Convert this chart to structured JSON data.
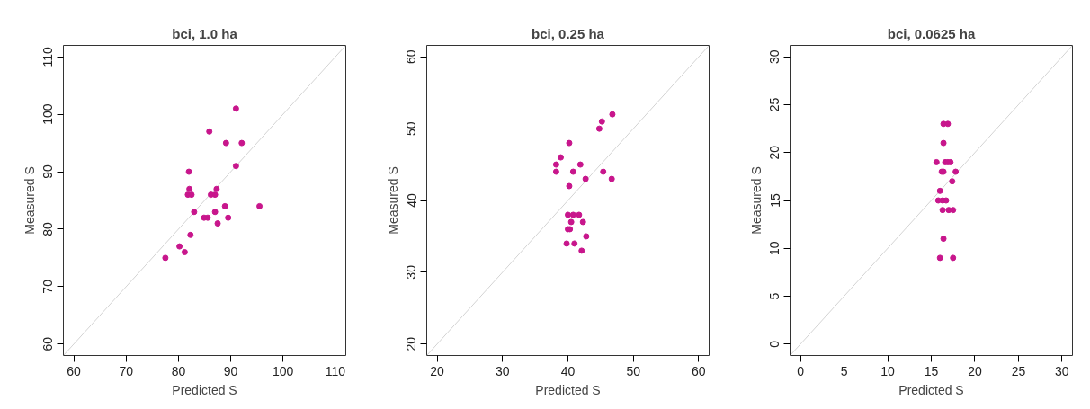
{
  "chart_data": [
    {
      "type": "scatter",
      "title": "bci, 1.0 ha",
      "xlabel": "Predicted S",
      "ylabel": "Measured S",
      "xlim": [
        58,
        112
      ],
      "ylim": [
        58,
        112
      ],
      "xticks": [
        60,
        70,
        80,
        90,
        100,
        110
      ],
      "yticks": [
        60,
        70,
        80,
        90,
        100,
        110
      ],
      "grid": false,
      "series": [
        {
          "type": "line",
          "color": "#d3d3d3",
          "x": [
            58,
            112
          ],
          "values": [
            58,
            112
          ]
        },
        {
          "color": "#c8168c",
          "marker": "circle",
          "x": [
            91,
            85.9,
            89.1,
            92.1,
            91,
            82,
            82.1,
            81.8,
            82.5,
            87.3,
            86.2,
            87,
            88.9,
            95.5,
            83,
            87,
            84.9,
            85.6,
            89.5,
            87.5,
            82.3,
            80.2,
            81.2,
            77.5
          ],
          "values": [
            101,
            97,
            95,
            95,
            91,
            90,
            87,
            86,
            86,
            87,
            86,
            86,
            84,
            84,
            83,
            83,
            82,
            82,
            82,
            81,
            79,
            77,
            76,
            75
          ]
        }
      ]
    },
    {
      "type": "scatter",
      "title": "bci, 0.25 ha",
      "xlabel": "Predicted S",
      "ylabel": "Measured S",
      "xlim": [
        18.4,
        61.6
      ],
      "ylim": [
        18.4,
        61.6
      ],
      "xticks": [
        20,
        30,
        40,
        50,
        60
      ],
      "yticks": [
        20,
        30,
        40,
        50,
        60
      ],
      "grid": false,
      "series": [
        {
          "type": "line",
          "color": "#d3d3d3",
          "x": [
            18.4,
            61.6
          ],
          "values": [
            18.4,
            61.6
          ]
        },
        {
          "color": "#c8168c",
          "marker": "circle",
          "x": [
            46.8,
            45.2,
            44.8,
            40.2,
            38.9,
            38.2,
            41.9,
            38.2,
            40.8,
            45.4,
            42.7,
            46.7,
            40.2,
            40,
            40.8,
            41.7,
            40.5,
            42.3,
            40,
            40.3,
            42.8,
            39.8,
            41,
            42.1
          ],
          "values": [
            52,
            51,
            50,
            48,
            46,
            45,
            45,
            44,
            44,
            44,
            43,
            43,
            42,
            38,
            38,
            38,
            37,
            37,
            36,
            36,
            35,
            34,
            34,
            33
          ]
        }
      ]
    },
    {
      "type": "scatter",
      "title": "bci, 0.0625 ha",
      "xlabel": "Predicted S",
      "ylabel": "Measured S",
      "xlim": [
        -1.2,
        31.2
      ],
      "ylim": [
        -1.2,
        31.2
      ],
      "xticks": [
        0,
        5,
        10,
        15,
        20,
        25,
        30
      ],
      "yticks": [
        0,
        5,
        10,
        15,
        20,
        25,
        30
      ],
      "grid": false,
      "series": [
        {
          "type": "line",
          "color": "#d3d3d3",
          "x": [
            -1.2,
            31.2
          ],
          "values": [
            -1.2,
            31.2
          ]
        },
        {
          "color": "#c8168c",
          "marker": "circle",
          "x": [
            16.4,
            16.9,
            16.4,
            15.6,
            16.6,
            16.9,
            17.2,
            16.2,
            16.4,
            17.8,
            17.4,
            16,
            15.8,
            16.3,
            16.7,
            16.3,
            17,
            17.5,
            16.4,
            16,
            17.5
          ],
          "values": [
            23,
            23,
            21,
            19,
            19,
            19,
            19,
            18,
            18,
            18,
            17,
            16,
            15,
            15,
            15,
            14,
            14,
            14,
            11,
            9,
            9
          ]
        }
      ]
    }
  ]
}
